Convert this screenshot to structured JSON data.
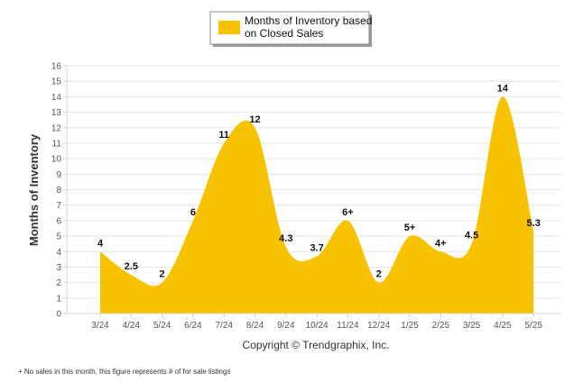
{
  "chart_data": {
    "type": "area",
    "ylabel": "Months of Inventory",
    "ylim": [
      0,
      16
    ],
    "ytick_step": 1,
    "grid": true,
    "legend_position": "top-center",
    "color": "#f7c200",
    "categories": [
      "3/24",
      "4/24",
      "5/24",
      "6/24",
      "7/24",
      "8/24",
      "9/24",
      "10/24",
      "11/24",
      "12/24",
      "1/25",
      "2/25",
      "3/25",
      "4/25",
      "5/25"
    ],
    "series": [
      {
        "name": "Months of Inventory based on Closed Sales",
        "values": [
          4,
          2.5,
          2,
          6,
          11,
          12,
          4.3,
          3.7,
          6,
          2,
          5,
          4,
          4.5,
          14,
          5.3
        ],
        "labels": [
          "4",
          "2.5",
          "2",
          "6",
          "11",
          "12",
          "4.3",
          "3.7",
          "6+",
          "2",
          "5+",
          "4+",
          "4.5",
          "14",
          "5.3"
        ]
      }
    ],
    "legend": {
      "line1": "Months of Inventory based",
      "line2": "on Closed Sales"
    },
    "copyright": "Copyright © Trendgraphix, Inc.",
    "footnote": "+ No sales in this month, this figure represents # of for sale listings"
  }
}
